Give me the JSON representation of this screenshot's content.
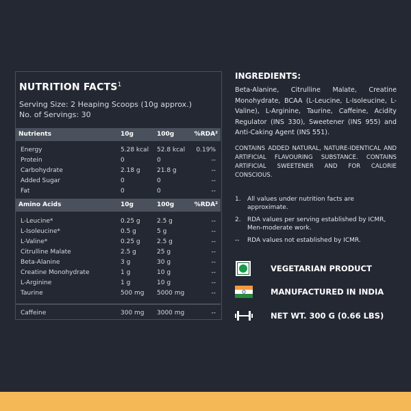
{
  "nutrition": {
    "title": "NUTRITION FACTS",
    "title_sup": "1",
    "serving_size": "Serving Size: 2 Heaping Scoops (10g approx.)",
    "servings": "No. of Servings: 30",
    "nutrients_header": [
      "Nutrients",
      "10g",
      "100g",
      "%RDA²"
    ],
    "nutrients": [
      [
        "Energy",
        "5.28 kcal",
        "52.8 kcal",
        "0.19%"
      ],
      [
        "Protein",
        "0",
        "0",
        "--"
      ],
      [
        "Carbohydrate",
        "2.18 g",
        "21.8 g",
        "--"
      ],
      [
        "Added Sugar",
        "0",
        "0",
        "--"
      ],
      [
        "Fat",
        "0",
        "0",
        "--"
      ]
    ],
    "amino_header": [
      "Amino Acids",
      "10g",
      "100g",
      "%RDA²"
    ],
    "amino": [
      [
        "L-Leucine*",
        "0.25 g",
        "2.5 g",
        "--"
      ],
      [
        "L-Isoleucine*",
        "0.5 g",
        "5 g",
        "--"
      ],
      [
        "L-Valine*",
        "0.25 g",
        "2.5 g",
        "--"
      ],
      [
        "Citrulline Malate",
        "2.5 g",
        "25 g",
        "--"
      ],
      [
        "Beta-Alanine",
        "3 g",
        "30 g",
        "--"
      ],
      [
        "Creatine Monohydrate",
        "1 g",
        "10 g",
        "--"
      ],
      [
        "L-Arginine",
        "1 g",
        "10 g",
        "--"
      ],
      [
        "Taurine",
        "500 mg",
        "5000 mg",
        "--"
      ]
    ],
    "caffeine": [
      "Caffeine",
      "300 mg",
      "3000 mg",
      "--"
    ]
  },
  "ingredients": {
    "heading": "INGREDIENTS:",
    "text": "Beta-Alanine, Citrulline Malate, Creatine Monohydrate, BCAA (L-Leucine, L-Isoleucine, L-Valine), L-Arginine, Taurine, Caffeine, Acidity Regulator (INS 330), Sweetener (INS 955) and Anti-Caking Agent (INS 551).",
    "warning": "CONTAINS ADDED NATURAL, NATURE-IDENTICAL AND ARTIFICIAL FLAVOURING SUBSTANCE. CONTAINS ARTIFICIAL SWEETENER AND FOR CALORIE CONSCIOUS."
  },
  "notes": [
    {
      "n": "1.",
      "t": "All values under nutrition facts are approximate."
    },
    {
      "n": "2.",
      "t": "RDA values per serving established by ICMR, Men-moderate work."
    },
    {
      "n": "--",
      "t": "RDA values not established by ICMR."
    }
  ],
  "features": [
    {
      "icon": "vegetarian-icon",
      "label": "VEGETARIAN PRODUCT"
    },
    {
      "icon": "india-flag-icon",
      "label": "MANUFACTURED IN INDIA"
    },
    {
      "icon": "dumbbell-icon",
      "label": "NET WT.  300 G (0.66 LBS)"
    }
  ],
  "colors": {
    "background": "#232833",
    "header_row": "#4a505c",
    "accent_bar": "#f5b857",
    "veg_green": "#1a9a4a"
  }
}
